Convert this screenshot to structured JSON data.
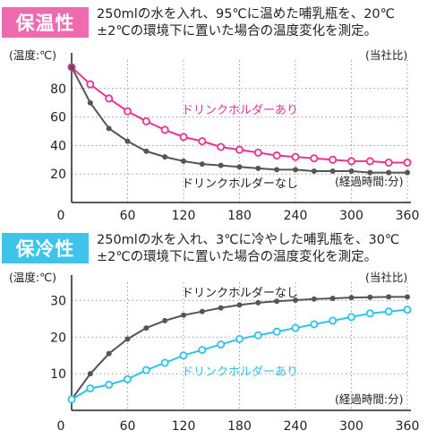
{
  "sections": [
    {
      "badge": "保温性",
      "badge_color": "#f06ab0",
      "desc_line1": "250mlの水を入れ、95℃に温めた哺乳瓶を、20℃",
      "desc_line2": "±2℃の環境下に置いた場合の温度変化を測定。"
    },
    {
      "badge": "保冷性",
      "badge_color": "#3ec4ea",
      "desc_line1": "250mlの水を入れ、3℃に冷やした哺乳瓶を、30℃",
      "desc_line2": "±2℃の環境下に置いた場合の温度変化を測定。"
    }
  ],
  "chart_data": [
    {
      "type": "line",
      "ylabel": "(温度:℃)",
      "xlabel": "(経過時間:分)",
      "corner_note": "(当社比)",
      "xlim": [
        0,
        360
      ],
      "ylim": [
        0,
        100
      ],
      "x_ticks": [
        0,
        60,
        120,
        180,
        240,
        300,
        360
      ],
      "y_ticks": [
        20,
        40,
        60,
        80
      ],
      "x": [
        0,
        20,
        40,
        60,
        80,
        100,
        120,
        140,
        160,
        180,
        200,
        220,
        240,
        260,
        280,
        300,
        320,
        340,
        360
      ],
      "series": [
        {
          "name": "ドリンクホルダーあり",
          "color": "#e8348e",
          "values": [
            95,
            83,
            73,
            64,
            57,
            51,
            46,
            43,
            39,
            37,
            35,
            33,
            32,
            31,
            30,
            29,
            29,
            28,
            28
          ]
        },
        {
          "name": "ドリンクホルダーなし",
          "color": "#555555",
          "values": [
            95,
            70,
            52,
            43,
            36,
            32,
            29,
            27,
            26,
            25,
            24,
            23,
            23,
            22,
            22,
            22,
            21,
            21,
            21
          ]
        }
      ]
    },
    {
      "type": "line",
      "ylabel": "(温度:℃)",
      "xlabel": "(経過時間:分)",
      "corner_note": "(当社比)",
      "xlim": [
        0,
        360
      ],
      "ylim": [
        0,
        35
      ],
      "x_ticks": [
        0,
        60,
        120,
        180,
        240,
        300,
        360
      ],
      "y_ticks": [
        10,
        20,
        30
      ],
      "x": [
        0,
        20,
        40,
        60,
        80,
        100,
        120,
        140,
        160,
        180,
        200,
        220,
        240,
        260,
        280,
        300,
        320,
        340,
        360
      ],
      "series": [
        {
          "name": "ドリンクホルダーなし",
          "color": "#555555",
          "values": [
            3,
            10,
            15.5,
            19.5,
            22.5,
            24.5,
            26,
            27,
            28,
            28.8,
            29.4,
            29.8,
            30.1,
            30.4,
            30.6,
            30.8,
            30.9,
            31,
            31
          ]
        },
        {
          "name": "ドリンクホルダーあり",
          "color": "#2ec3e8",
          "values": [
            3,
            6,
            7,
            8.5,
            11,
            13,
            15,
            16.5,
            18,
            19.5,
            20.5,
            21.5,
            22.5,
            23.5,
            24.5,
            25.5,
            26.5,
            27,
            27.5
          ]
        }
      ]
    }
  ]
}
